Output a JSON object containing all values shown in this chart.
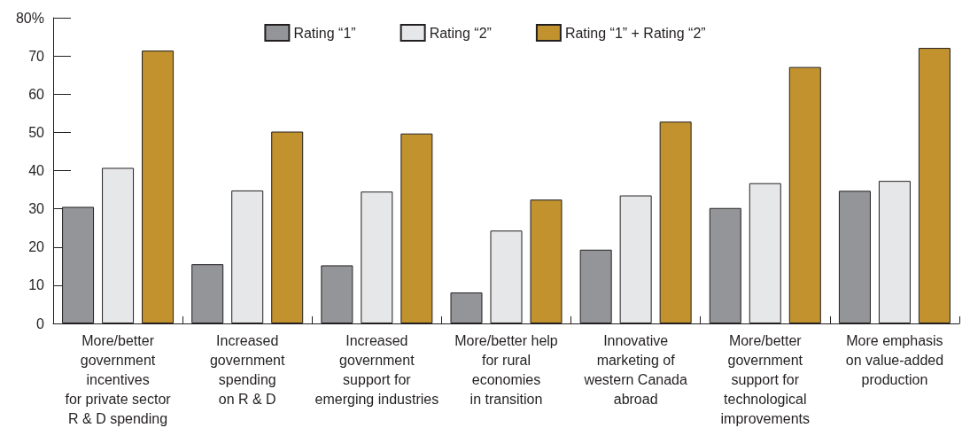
{
  "chart_data": {
    "type": "bar",
    "categories": [
      "More/better\ngovernment\nincentives\nfor private sector\nR & D spending",
      "Increased\ngovernment\nspending\non R & D",
      "Increased\ngovernment\nsupport for\nemerging industries",
      "More/better help\nfor rural\neconomies\nin transition",
      "Innovative\nmarketing of\nwestern Canada\nabroad",
      "More/better\ngovernment\nsupport for\ntechnological\nimprovements",
      "More emphasis\non value-added\nproduction"
    ],
    "series": [
      {
        "name": "Rating “1”",
        "color": "#939598",
        "values": [
          30.5,
          15.5,
          15.2,
          8.1,
          19.3,
          30.2,
          34.7
        ]
      },
      {
        "name": "Rating “2”",
        "color": "#e6e7e8",
        "values": [
          40.7,
          34.8,
          34.5,
          24.3,
          33.5,
          36.7,
          37.3
        ]
      },
      {
        "name": "Rating “1” + Rating “2”",
        "color": "#c1922e",
        "values": [
          71.4,
          50.2,
          49.7,
          32.4,
          52.8,
          67.1,
          72.1
        ]
      }
    ],
    "ylim": [
      0,
      80
    ],
    "yticks": [
      0,
      10,
      20,
      30,
      40,
      50,
      60,
      70,
      {
        "value": 80,
        "label": "80%"
      }
    ],
    "grid": false,
    "legend": "top"
  }
}
